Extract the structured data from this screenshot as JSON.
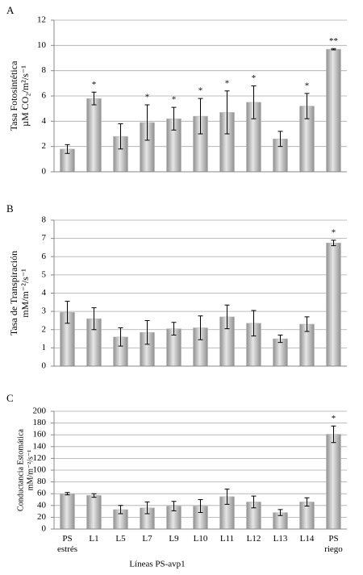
{
  "chart_data": [
    {
      "type": "bar",
      "label": "A",
      "ylabel": [
        "Tasa Fotosintética",
        "µM CO₂/m²/s⁻¹"
      ],
      "values": [
        1.8,
        5.8,
        2.8,
        3.9,
        4.2,
        4.4,
        4.7,
        5.5,
        2.6,
        5.2,
        9.7
      ],
      "errors": [
        0.35,
        0.5,
        1.0,
        1.4,
        0.9,
        1.4,
        1.7,
        1.3,
        0.6,
        1.0,
        0.05
      ],
      "annotations": [
        null,
        "*",
        null,
        "*",
        "*",
        "*",
        "*",
        "*",
        null,
        "*",
        "**"
      ],
      "ylim": [
        0,
        12
      ],
      "yticks": [
        0,
        2,
        4,
        6,
        8,
        10,
        12
      ],
      "grid": true,
      "color": "#b8b8b8"
    },
    {
      "type": "bar",
      "label": "B",
      "ylabel": [
        "Tasa de Transpiración",
        "mM/m⁻²/s⁻¹"
      ],
      "values": [
        2.95,
        2.6,
        1.6,
        1.85,
        2.05,
        2.1,
        2.7,
        2.35,
        1.5,
        2.3,
        6.75
      ],
      "errors": [
        0.6,
        0.6,
        0.5,
        0.65,
        0.35,
        0.65,
        0.65,
        0.7,
        0.2,
        0.4,
        0.15
      ],
      "annotations": [
        null,
        null,
        null,
        null,
        null,
        null,
        null,
        null,
        null,
        null,
        "*"
      ],
      "ylim": [
        0,
        8
      ],
      "yticks": [
        0,
        1,
        2,
        3,
        4,
        5,
        6,
        7,
        8
      ],
      "grid": true,
      "color": "#b8b8b8"
    },
    {
      "type": "bar",
      "label": "C",
      "ylabel": [
        "Conductancia Estomática",
        "mM/m⁻²/s⁻¹"
      ],
      "xlabel": "Líneas PS-avp1",
      "categories": [
        "PS\nestrés",
        "L1",
        "L5",
        "L7",
        "L9",
        "L10",
        "L11",
        "L12",
        "L13",
        "L14",
        "PS\nriego"
      ],
      "values": [
        60,
        57,
        33,
        36,
        39,
        39,
        55,
        46,
        28,
        46,
        161
      ],
      "errors": [
        2,
        3,
        7,
        10,
        8,
        11,
        13,
        10,
        5,
        7,
        14
      ],
      "annotations": [
        null,
        null,
        null,
        null,
        null,
        null,
        null,
        null,
        null,
        null,
        "*"
      ],
      "ylim": [
        0,
        200
      ],
      "yticks": [
        0,
        20,
        40,
        60,
        80,
        100,
        120,
        140,
        160,
        180,
        200
      ],
      "grid": true,
      "color": "#b8b8b8"
    }
  ]
}
